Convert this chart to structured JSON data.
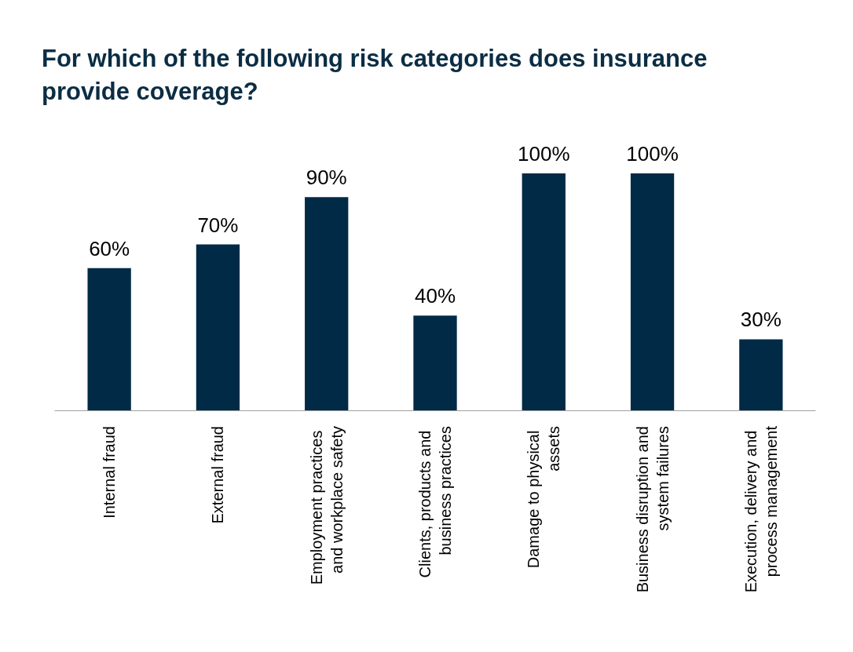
{
  "chart_data": {
    "type": "bar",
    "title": "For which of the following risk categories does insurance provide coverage?",
    "categories": [
      "Internal fraud",
      "External fraud",
      "Employment practices and workplace safety",
      "Clients, products and business practices",
      "Damage to physical assets",
      "Business disruption and system failures",
      "Execution, delivery and process management"
    ],
    "values": [
      60,
      70,
      90,
      40,
      100,
      100,
      30
    ],
    "value_labels": [
      "60%",
      "70%",
      "90%",
      "40%",
      "100%",
      "100%",
      "30%"
    ],
    "color": "#002a45"
  }
}
